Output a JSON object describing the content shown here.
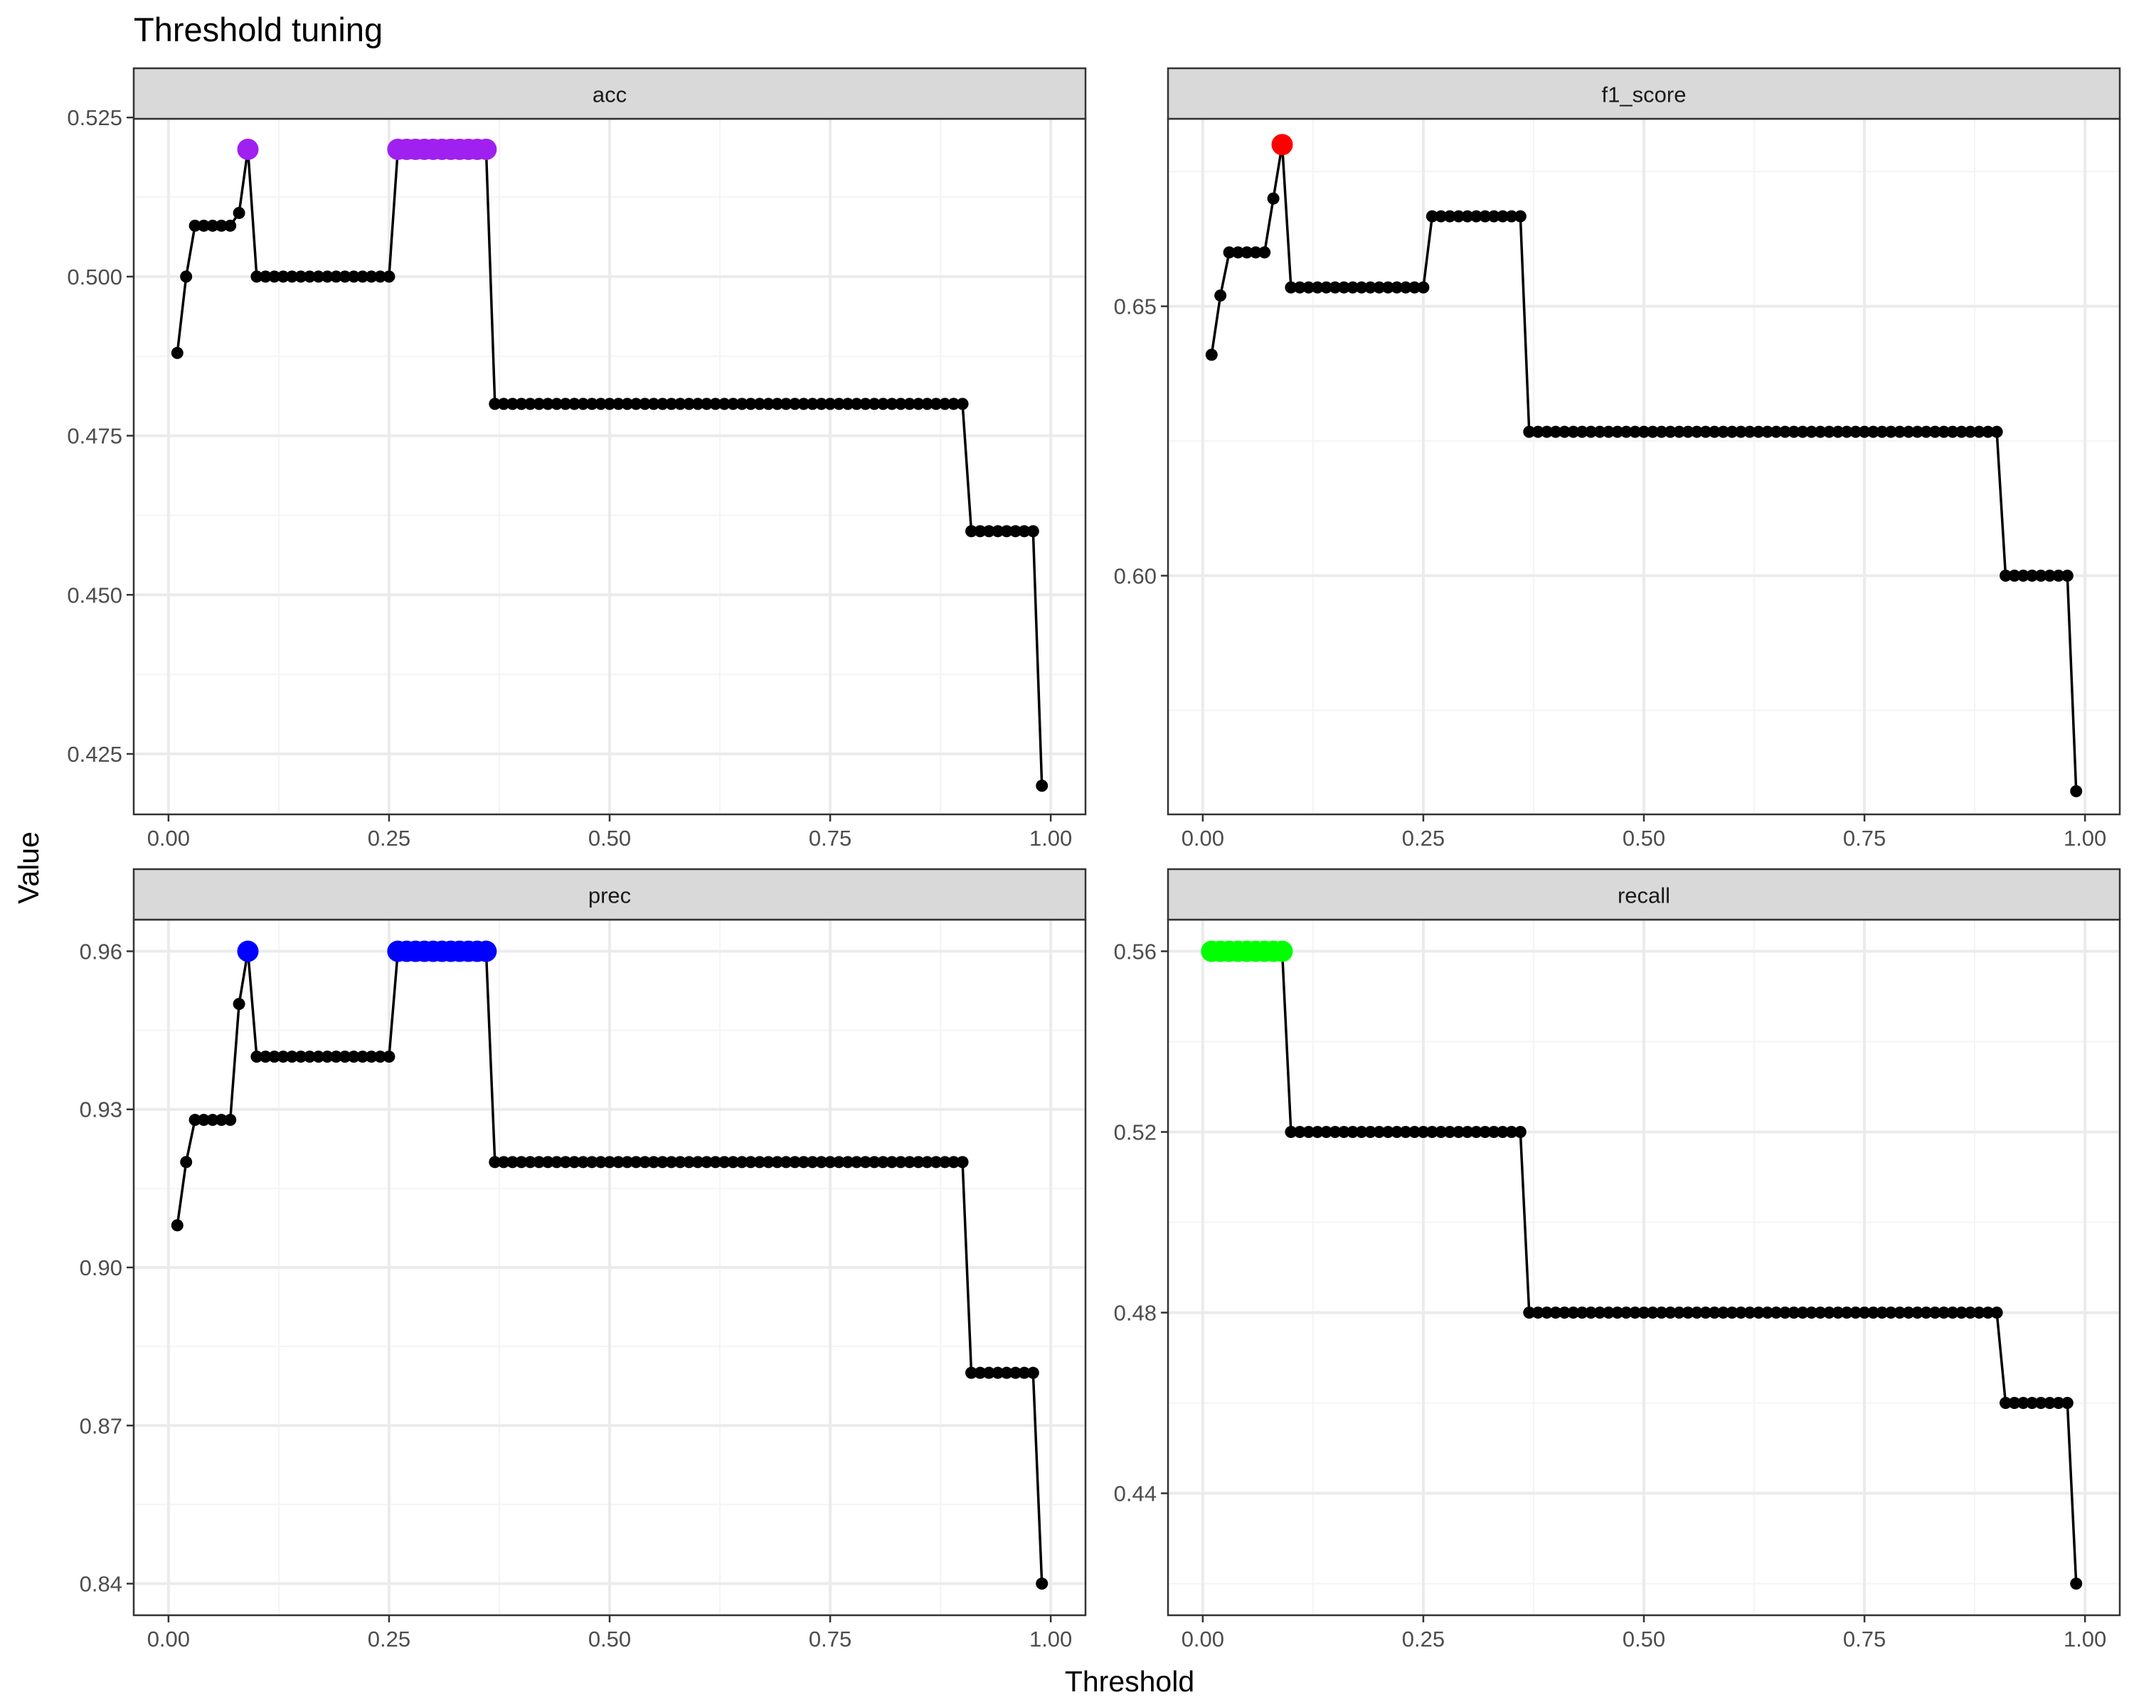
{
  "chart_data": {
    "type": "line",
    "title": "Threshold tuning",
    "xlabel": "Threshold",
    "ylabel": "Value",
    "colors": {
      "line": "#000000",
      "point": "#000000",
      "strip_fill": "#d9d9d9",
      "panel_border": "#333333",
      "grid_major": "#ebebeb",
      "grid_minor": "#f4f4f4",
      "axis_text": "#4d4d4d"
    },
    "x_ticks": [
      0,
      0.25,
      0.5,
      0.75,
      1
    ],
    "x_tick_labels": [
      "0.00",
      "0.25",
      "0.50",
      "0.75",
      "1.00"
    ],
    "panels": [
      {
        "name": "acc",
        "highlight_color": "#a020f0",
        "ylim": [
          0.4155,
          0.5248
        ],
        "y_ticks": [
          0.425,
          0.45,
          0.475,
          0.5,
          0.525
        ],
        "y_tick_labels": [
          "0.425",
          "0.450",
          "0.475",
          "0.500",
          "0.525"
        ],
        "segments": [
          {
            "from": 1,
            "to": 1,
            "value": 0.488
          },
          {
            "from": 2,
            "to": 2,
            "value": 0.5
          },
          {
            "from": 3,
            "to": 7,
            "value": 0.508
          },
          {
            "from": 8,
            "to": 8,
            "value": 0.51
          },
          {
            "from": 9,
            "to": 9,
            "value": 0.52,
            "highlight": true
          },
          {
            "from": 10,
            "to": 25,
            "value": 0.5
          },
          {
            "from": 26,
            "to": 36,
            "value": 0.52,
            "highlight": true
          },
          {
            "from": 37,
            "to": 90,
            "value": 0.48
          },
          {
            "from": 91,
            "to": 98,
            "value": 0.46
          },
          {
            "from": 99,
            "to": 99,
            "value": 0.42
          }
        ]
      },
      {
        "name": "f1_score",
        "highlight_color": "#ff0000",
        "ylim": [
          0.5557,
          0.6848
        ],
        "y_ticks": [
          0.6,
          0.65
        ],
        "y_tick_labels": [
          "0.60",
          "0.65"
        ],
        "segments": [
          {
            "from": 1,
            "to": 1,
            "value": 0.641
          },
          {
            "from": 2,
            "to": 2,
            "value": 0.652
          },
          {
            "from": 3,
            "to": 7,
            "value": 0.66
          },
          {
            "from": 8,
            "to": 8,
            "value": 0.67
          },
          {
            "from": 9,
            "to": 9,
            "value": 0.68,
            "highlight": true
          },
          {
            "from": 10,
            "to": 25,
            "value": 0.6535
          },
          {
            "from": 26,
            "to": 36,
            "value": 0.6667
          },
          {
            "from": 37,
            "to": 90,
            "value": 0.6267
          },
          {
            "from": 91,
            "to": 98,
            "value": 0.6
          },
          {
            "from": 99,
            "to": 99,
            "value": 0.56
          }
        ]
      },
      {
        "name": "prec",
        "highlight_color": "#0000ff",
        "ylim": [
          0.834,
          0.966
        ],
        "y_ticks": [
          0.84,
          0.87,
          0.9,
          0.93,
          0.96
        ],
        "y_tick_labels": [
          "0.84",
          "0.87",
          "0.90",
          "0.93",
          "0.96"
        ],
        "segments": [
          {
            "from": 1,
            "to": 1,
            "value": 0.908
          },
          {
            "from": 2,
            "to": 2,
            "value": 0.92
          },
          {
            "from": 3,
            "to": 7,
            "value": 0.928
          },
          {
            "from": 8,
            "to": 8,
            "value": 0.95
          },
          {
            "from": 9,
            "to": 9,
            "value": 0.96,
            "highlight": true
          },
          {
            "from": 10,
            "to": 25,
            "value": 0.94
          },
          {
            "from": 26,
            "to": 36,
            "value": 0.96,
            "highlight": true
          },
          {
            "from": 37,
            "to": 90,
            "value": 0.92
          },
          {
            "from": 91,
            "to": 98,
            "value": 0.88
          },
          {
            "from": 99,
            "to": 99,
            "value": 0.84
          }
        ]
      },
      {
        "name": "recall",
        "highlight_color": "#00ff00",
        "ylim": [
          0.413,
          0.567
        ],
        "y_ticks": [
          0.44,
          0.48,
          0.52,
          0.56
        ],
        "y_tick_labels": [
          "0.44",
          "0.48",
          "0.52",
          "0.56"
        ],
        "segments": [
          {
            "from": 1,
            "to": 9,
            "value": 0.56,
            "highlight": true
          },
          {
            "from": 10,
            "to": 36,
            "value": 0.52
          },
          {
            "from": 37,
            "to": 90,
            "value": 0.48
          },
          {
            "from": 91,
            "to": 98,
            "value": 0.46
          },
          {
            "from": 99,
            "to": 99,
            "value": 0.42
          }
        ]
      }
    ]
  }
}
